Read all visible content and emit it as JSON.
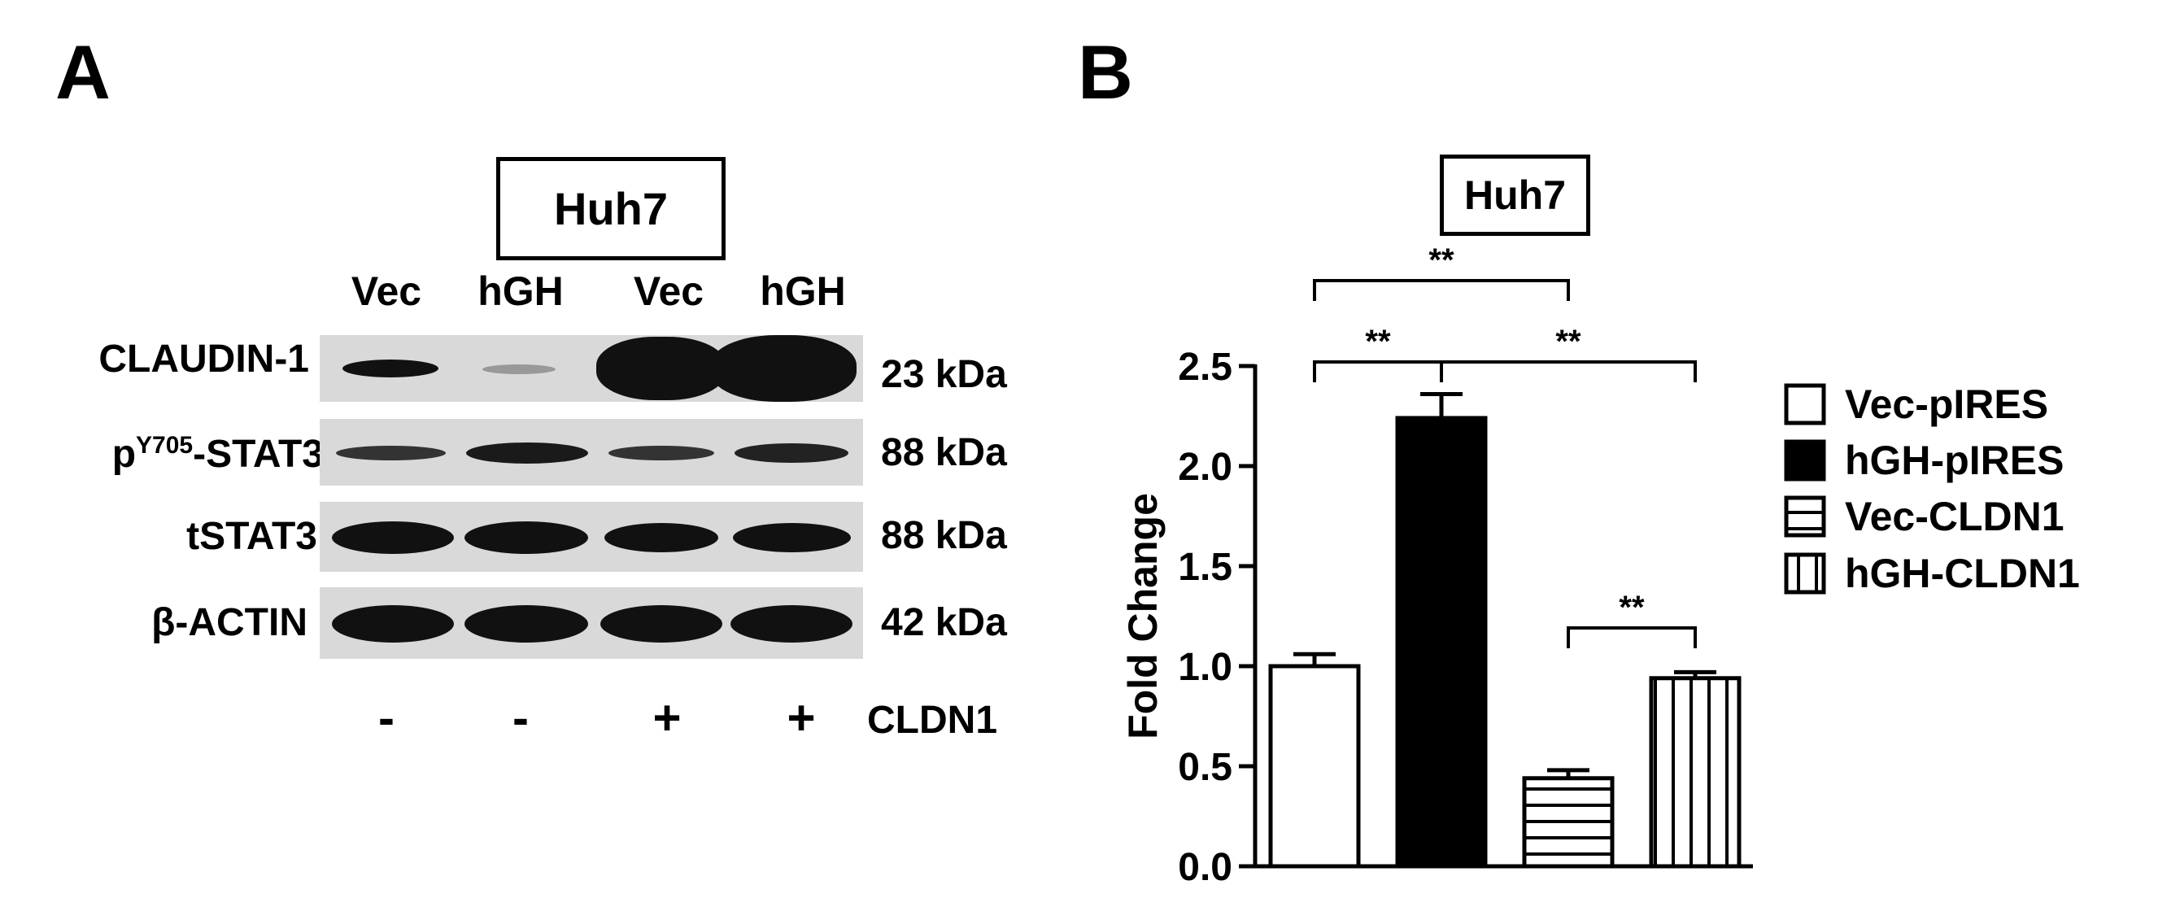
{
  "panel_a": {
    "label": "A",
    "cell_line": "Huh7",
    "lanes": [
      "Vec",
      "hGH",
      "Vec",
      "hGH"
    ],
    "rows": [
      {
        "name_pre": "CLAUDIN-1",
        "name_sup": "",
        "name_post": "",
        "kda": "23 kDa",
        "bands": [
          0.55,
          0.25,
          1.0,
          1.0
        ]
      },
      {
        "name_pre": "p",
        "name_sup": "Y705",
        "name_post": "-STAT3",
        "kda": "88 kDa",
        "bands": [
          0.55,
          0.7,
          0.55,
          0.65
        ]
      },
      {
        "name_pre": "tSTAT3",
        "name_sup": "",
        "name_post": "",
        "kda": "88 kDa",
        "bands": [
          0.85,
          0.85,
          0.8,
          0.8
        ]
      },
      {
        "name_pre": "β-ACTIN",
        "name_sup": "",
        "name_post": "",
        "kda": "42 kDa",
        "bands": [
          0.9,
          0.9,
          0.9,
          0.9
        ]
      }
    ],
    "treatments": [
      "-",
      "-",
      "+",
      "+"
    ],
    "treatment_label": "CLDN1"
  },
  "panel_b": {
    "label": "B",
    "cell_line": "Huh7"
  },
  "chart_data": {
    "type": "bar",
    "title": "Huh7",
    "ylabel": "Fold Change",
    "xlabel": "",
    "ylim": [
      0,
      2.5
    ],
    "yticks": [
      "0.0",
      "0.5",
      "1.0",
      "1.5",
      "2.0",
      "2.5"
    ],
    "categories": [
      "Vec-pIRES",
      "hGH-pIRES",
      "Vec-CLDN1",
      "hGH-CLDN1"
    ],
    "values": [
      1.0,
      2.24,
      0.44,
      0.94
    ],
    "errors": [
      0.06,
      0.12,
      0.04,
      0.03
    ],
    "fills": [
      "white",
      "black",
      "horizontal-stripes",
      "vertical-stripes"
    ],
    "legend_position": "right",
    "significance": [
      {
        "from": 0,
        "to": 1,
        "label": "**"
      },
      {
        "from": 1,
        "to": 3,
        "label": "**"
      },
      {
        "from": 0,
        "to": 2,
        "label": "**"
      },
      {
        "from": 2,
        "to": 3,
        "label": "**"
      }
    ]
  }
}
